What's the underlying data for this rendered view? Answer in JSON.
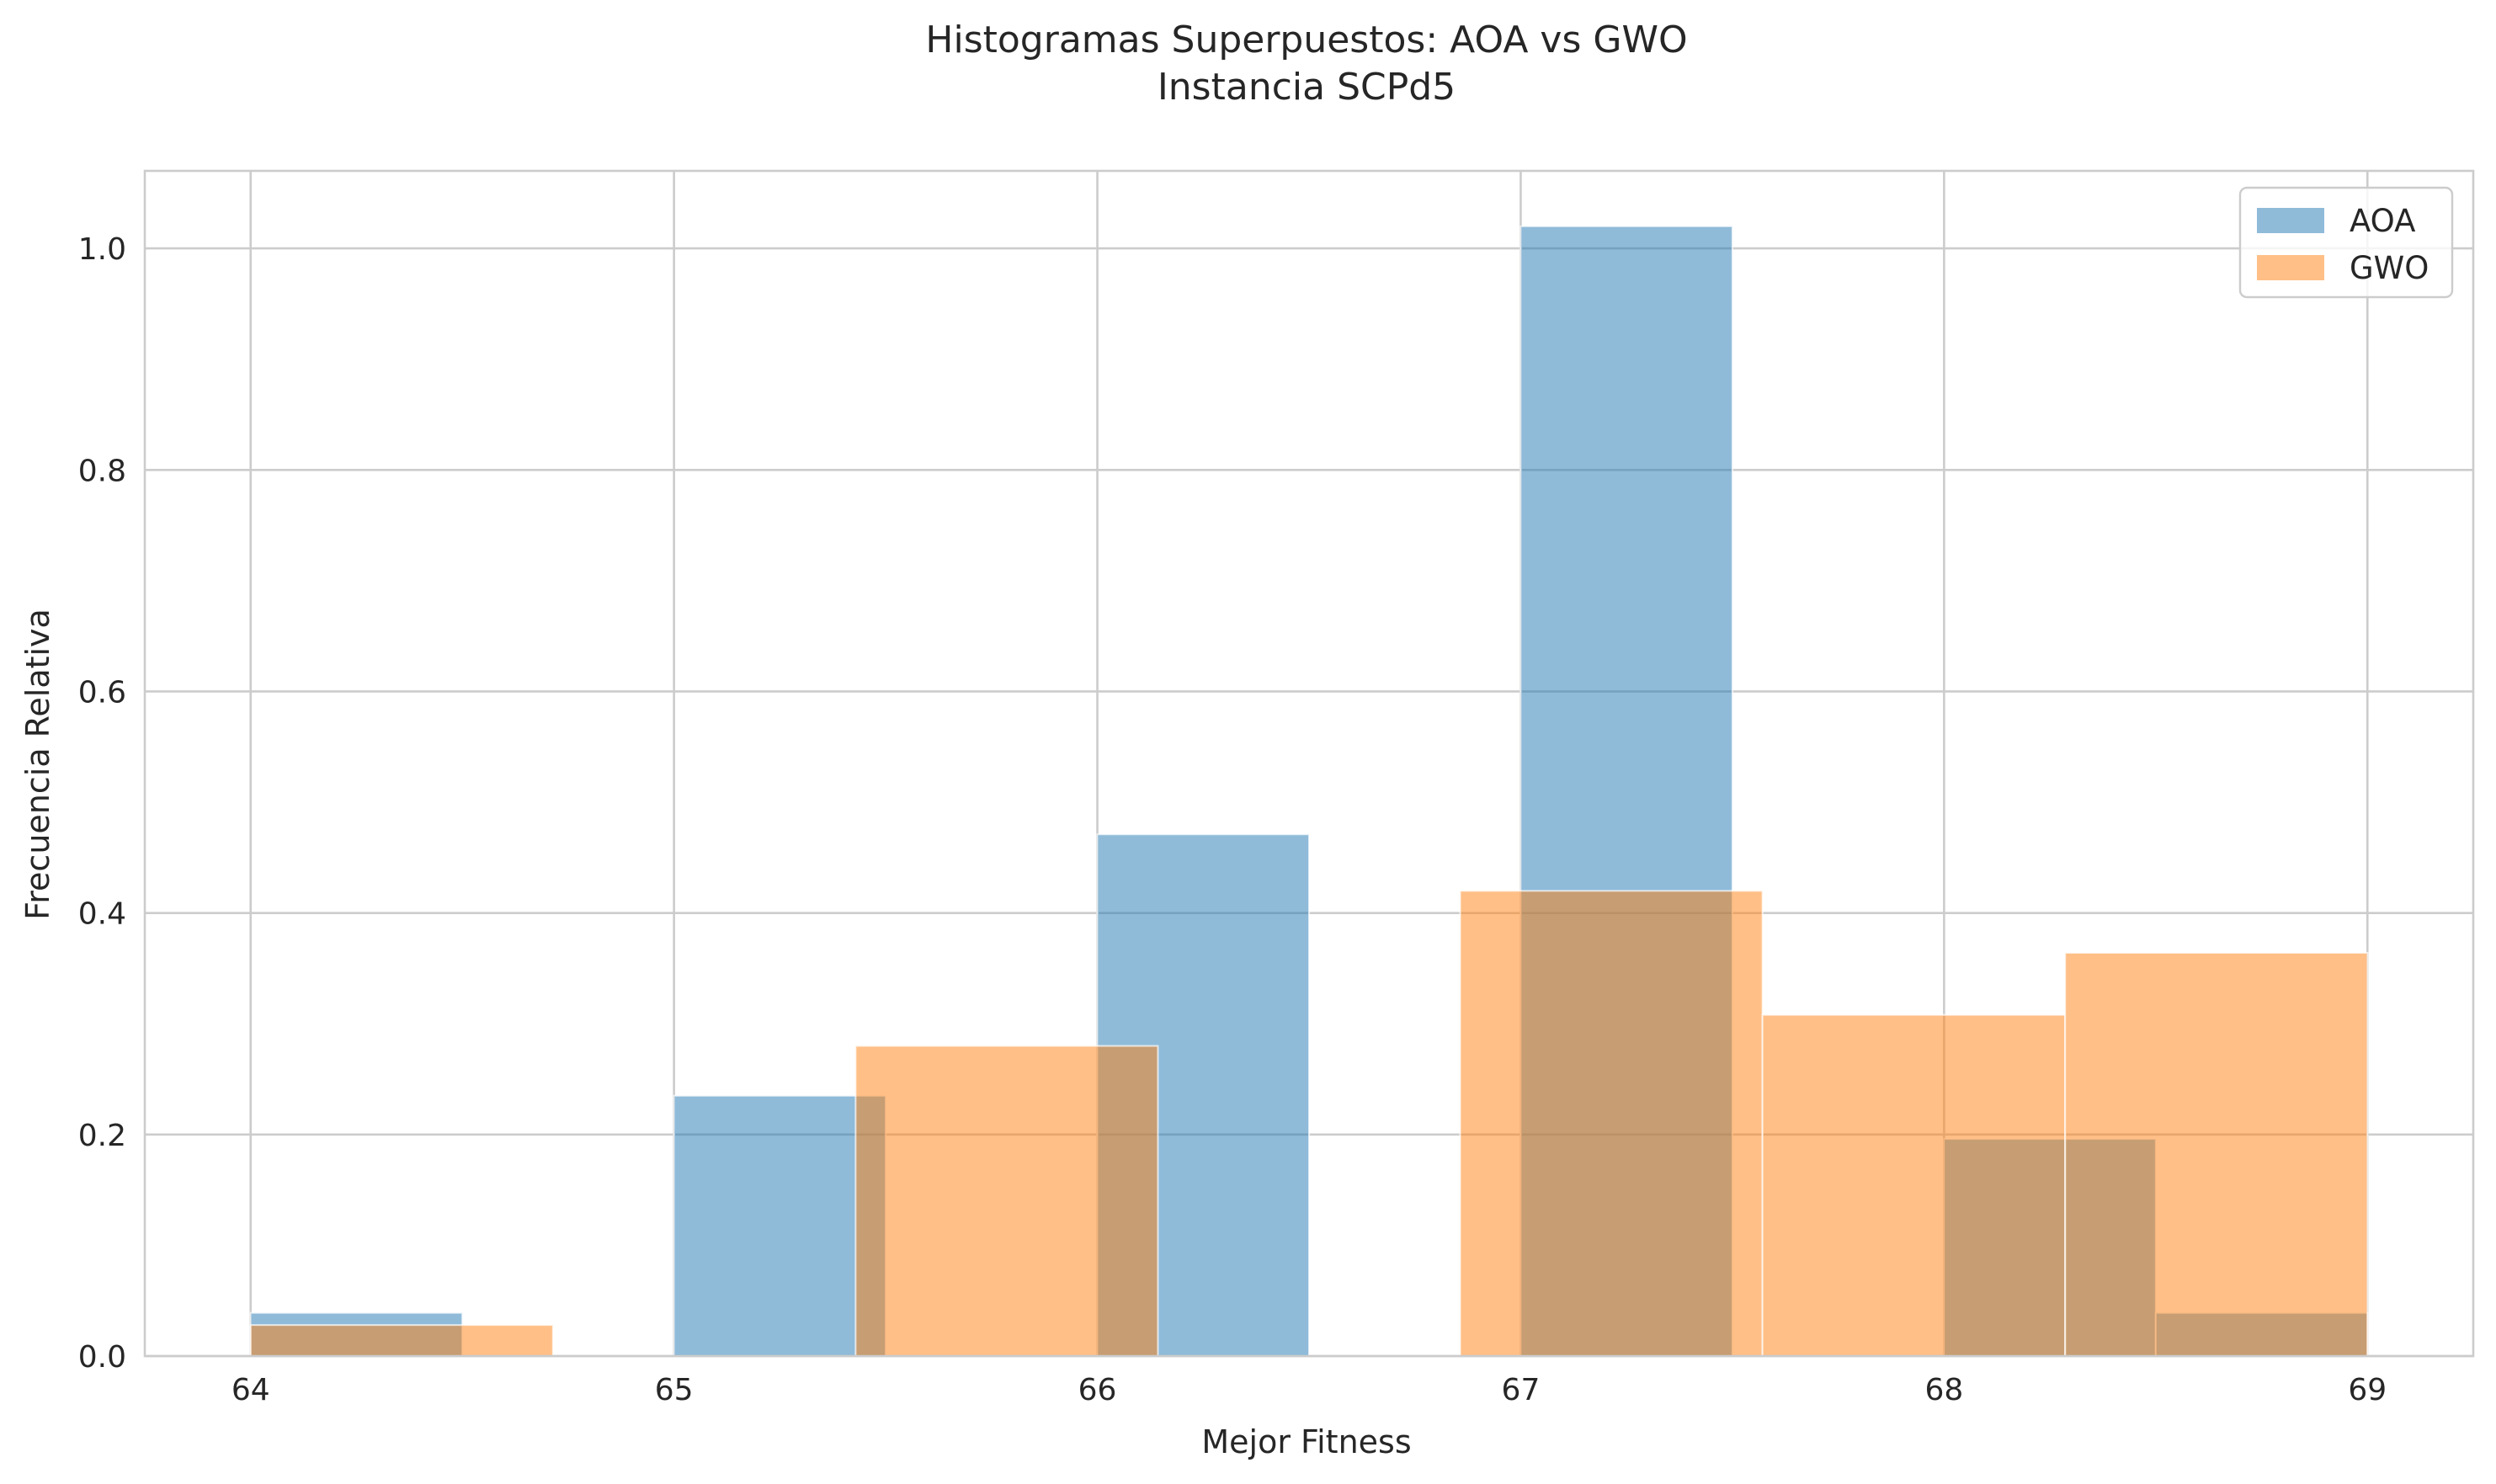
{
  "chart_data": {
    "type": "bar",
    "title": "Histogramas Superpuestos: AOA vs GWO",
    "subtitle": "Instancia SCPd5",
    "xlabel": "Mejor Fitness",
    "ylabel": "Frecuencia Relativa",
    "xlim": [
      63.75,
      69.25
    ],
    "ylim": [
      0.0,
      1.07
    ],
    "x_ticks": [
      64,
      65,
      66,
      67,
      68,
      69
    ],
    "x_tick_labels": [
      "64",
      "65",
      "66",
      "67",
      "68",
      "69"
    ],
    "y_ticks": [
      0.0,
      0.2,
      0.4,
      0.6,
      0.8,
      1.0
    ],
    "y_tick_labels": [
      "0.0",
      "0.2",
      "0.4",
      "0.6",
      "0.8",
      "1.0"
    ],
    "grid": true,
    "legend_position": "top-right",
    "bar_opacity": 0.5,
    "series": [
      {
        "name": "AOA",
        "color": "#1f77b4",
        "bins": [
          {
            "x0": 64.0,
            "x1": 64.5,
            "value": 0.039
          },
          {
            "x0": 64.5,
            "x1": 65.0,
            "value": 0.0
          },
          {
            "x0": 65.0,
            "x1": 65.5,
            "value": 0.235
          },
          {
            "x0": 65.5,
            "x1": 66.0,
            "value": 0.0
          },
          {
            "x0": 66.0,
            "x1": 66.5,
            "value": 0.471
          },
          {
            "x0": 66.5,
            "x1": 67.0,
            "value": 0.0
          },
          {
            "x0": 67.0,
            "x1": 67.5,
            "value": 1.02
          },
          {
            "x0": 67.5,
            "x1": 68.0,
            "value": 0.0
          },
          {
            "x0": 68.0,
            "x1": 68.5,
            "value": 0.196
          },
          {
            "x0": 68.5,
            "x1": 69.0,
            "value": 0.039
          }
        ]
      },
      {
        "name": "GWO",
        "color": "#ff7f0e",
        "bins": [
          {
            "x0": 64.0,
            "x1": 64.714,
            "value": 0.028
          },
          {
            "x0": 64.714,
            "x1": 65.429,
            "value": 0.0
          },
          {
            "x0": 65.429,
            "x1": 66.143,
            "value": 0.28
          },
          {
            "x0": 66.143,
            "x1": 66.857,
            "value": 0.0
          },
          {
            "x0": 66.857,
            "x1": 67.571,
            "value": 0.42
          },
          {
            "x0": 67.571,
            "x1": 68.286,
            "value": 0.308
          },
          {
            "x0": 68.286,
            "x1": 69.0,
            "value": 0.364
          }
        ]
      }
    ]
  }
}
